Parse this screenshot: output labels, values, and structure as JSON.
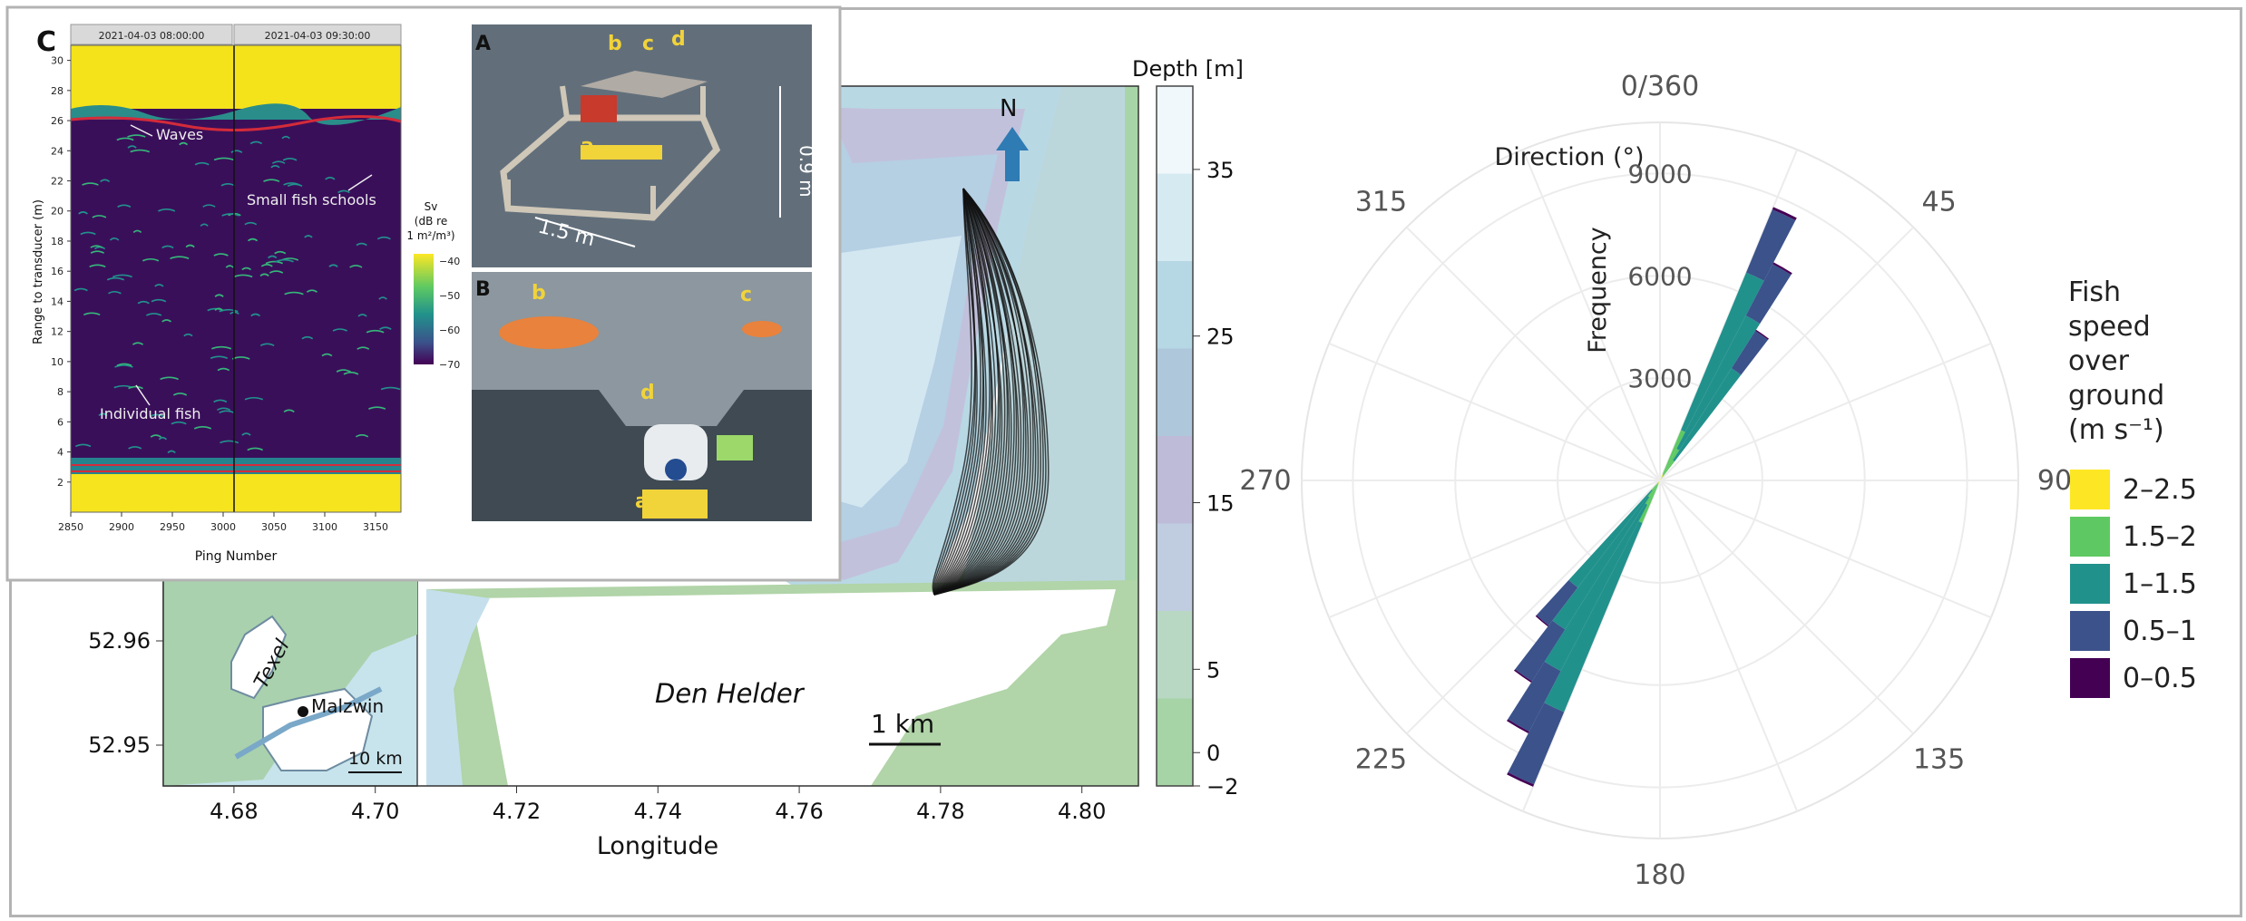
{
  "map": {
    "axis_label": "Longitude",
    "x_ticks": [
      "4.68",
      "4.70",
      "4.72",
      "4.74",
      "4.76",
      "4.78",
      "4.80"
    ],
    "y_ticks": [
      "52.96",
      "52.95"
    ],
    "place_label": "Den Helder",
    "scale_label": "1 km",
    "north_label": "N",
    "colorbar": {
      "title": "Depth [m]",
      "ticks": [
        "35",
        "25",
        "15",
        "5",
        "0",
        "−2"
      ],
      "colors": [
        "#f1f8fb",
        "#d6eaf1",
        "#b6d7e4",
        "#aec7db",
        "#bdbbd7",
        "#c0cde0",
        "#b8d8c4",
        "#a7d4a6"
      ]
    },
    "inset": {
      "island_label": "Texel",
      "site_label": "Malzwin",
      "scale_label": "10 km"
    }
  },
  "echogram": {
    "panel_label": "C",
    "time_labels": [
      "2021-04-03 08:00:00",
      "2021-04-03 09:30:00"
    ],
    "ylabel": "Range to transducer (m)",
    "xlabel": "Ping Number",
    "y_ticks": [
      "30",
      "28",
      "26",
      "24",
      "22",
      "20",
      "18",
      "16",
      "14",
      "12",
      "10",
      "8",
      "6",
      "4",
      "2"
    ],
    "x_ticks": [
      "2850",
      "2900",
      "2950",
      "3000",
      "3050",
      "3100",
      "3150"
    ],
    "annotations": [
      "Waves",
      "Small fish schools",
      "Individual fish"
    ],
    "colorbar_title": [
      "Sv",
      "(dB re",
      "1 m²/m³)"
    ],
    "colorbar_ticks": [
      "−40",
      "−50",
      "−60",
      "−70"
    ]
  },
  "photos": {
    "A": {
      "label": "A",
      "letters": [
        "a",
        "b",
        "c",
        "d"
      ],
      "dim_height": "0.9 m",
      "dim_width": "1.5 m"
    },
    "B": {
      "label": "B",
      "letters": [
        "a",
        "b",
        "c",
        "d"
      ]
    }
  },
  "rose": {
    "top_label": "0/360",
    "direction_label": "Direction (°)",
    "frequency_label": "Frequency",
    "angle_labels": [
      "0/360",
      "45",
      "90",
      "135",
      "180",
      "225",
      "270",
      "315"
    ],
    "radial_ticks": [
      "9000",
      "6000",
      "3000"
    ],
    "legend_title": [
      "Fish",
      "speed",
      "over",
      "ground",
      "(m s⁻¹)"
    ],
    "legend": [
      {
        "label": "2–2.5",
        "color": "#fde725"
      },
      {
        "label": "1.5–2",
        "color": "#5ec962"
      },
      {
        "label": "1–1.5",
        "color": "#21918c"
      },
      {
        "label": "0.5–1",
        "color": "#3b528b"
      },
      {
        "label": "0–0.5",
        "color": "#440154"
      }
    ]
  },
  "chart_data": [
    {
      "type": "heatmap",
      "title": "",
      "xlabel": "Longitude",
      "ylabel": "",
      "xlim": [
        4.67,
        4.808
      ],
      "colorbar_label": "Depth [m]",
      "colorbar_range": [
        -2,
        40
      ]
    },
    {
      "type": "heatmap",
      "title": "",
      "xlabel": "Ping Number",
      "ylabel": "Range to transducer (m)",
      "xlim": [
        2850,
        3175
      ],
      "ylim": [
        0,
        31
      ],
      "colorbar_label": "Sv (dB re 1 m²/m³)",
      "colorbar_range": [
        -70,
        -40
      ]
    },
    {
      "type": "bar",
      "title": "",
      "xlabel": "Direction (°)",
      "ylabel": "Frequency",
      "categories": [
        "25",
        "30",
        "35",
        "205",
        "210",
        "215",
        "220"
      ],
      "series": [
        {
          "name": "0–0.5",
          "values": [
            80,
            60,
            40,
            70,
            60,
            50,
            40
          ]
        },
        {
          "name": "0.5–1",
          "values": [
            2000,
            1700,
            1300,
            2300,
            2000,
            1800,
            1400
          ]
        },
        {
          "name": "1–1.5",
          "values": [
            5000,
            4400,
            3200,
            6000,
            5500,
            4600,
            3600
          ]
        },
        {
          "name": "1.5–2",
          "values": [
            1400,
            900,
            600,
            1200,
            700,
            500,
            300
          ]
        },
        {
          "name": "2–2.5",
          "values": [
            200,
            150,
            100,
            150,
            100,
            80,
            60
          ]
        }
      ],
      "ylim": [
        0,
        10500
      ]
    }
  ]
}
